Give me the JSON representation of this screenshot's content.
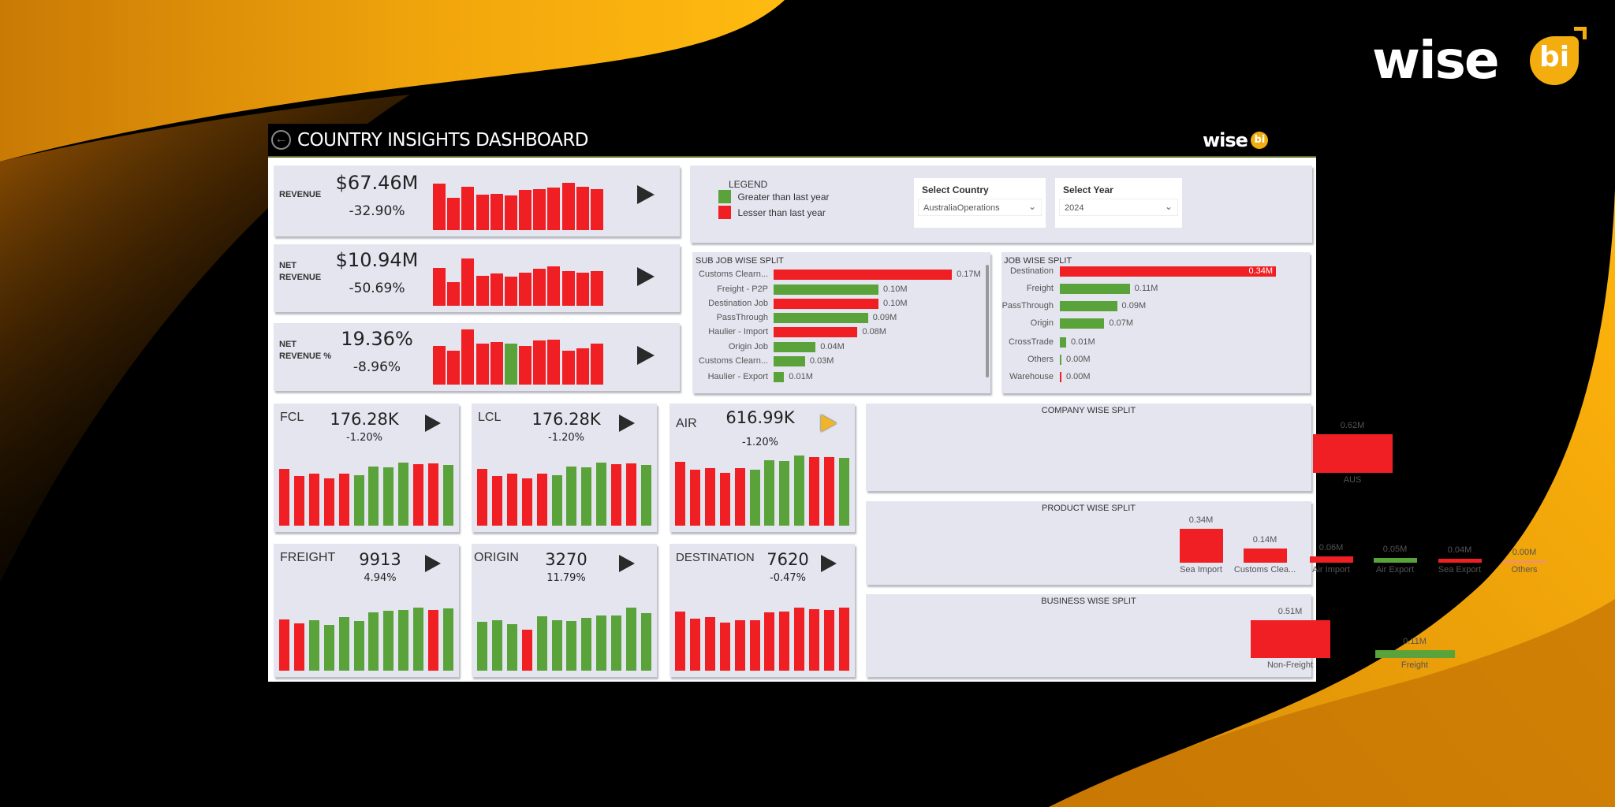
{
  "brand": {
    "logo_text": "wise",
    "logo_badge": "bi"
  },
  "header": {
    "title": "COUNTRY INSIGHTS DASHBOARD",
    "back_icon": "back-arrow-circle-icon"
  },
  "colors": {
    "up": "#5aa33a",
    "down": "#ef1f23",
    "zero_down": "#f08a8a",
    "panel": "#e4e5ef",
    "accent": "#f4ad0f",
    "highlight_arrow": "#f0b429"
  },
  "legend": {
    "title": "LEGEND",
    "items": [
      {
        "label": "Greater than last year",
        "color": "up"
      },
      {
        "label": "Lesser than last year",
        "color": "down"
      }
    ]
  },
  "filters": {
    "country": {
      "label": "Select Country",
      "value": "AustraliaOperations"
    },
    "year": {
      "label": "Select Year",
      "value": "2024"
    }
  },
  "kpis": [
    {
      "label": "REVENUE",
      "value": "$67.46M",
      "change": "-32.90%"
    },
    {
      "label": "NET\nREVENUE",
      "value": "$10.94M",
      "change": "-50.69%"
    },
    {
      "label": "NET\nREVENUE %",
      "value": "19.36%",
      "change": "-8.96%"
    }
  ],
  "tiles": [
    {
      "label": "FCL",
      "value": "176.28K",
      "change": "-1.20%"
    },
    {
      "label": "LCL",
      "value": "176.28K",
      "change": "-1.20%"
    },
    {
      "label": "AIR",
      "value": "616.99K",
      "change": "-1.20%"
    },
    {
      "label": "FREIGHT",
      "value": "9913",
      "change": "4.94%"
    },
    {
      "label": "ORIGIN",
      "value": "3270",
      "change": "11.79%"
    },
    {
      "label": "DESTINATION",
      "value": "7620",
      "change": "-0.47%"
    }
  ],
  "chart_data": [
    {
      "id": "kpi0",
      "type": "bar",
      "values": [
        177,
        123,
        164,
        133,
        136,
        132,
        151,
        156,
        162,
        179,
        164,
        155
      ],
      "colors": [
        "down",
        "down",
        "down",
        "down",
        "down",
        "down",
        "down",
        "down",
        "down",
        "down",
        "down",
        "down"
      ]
    },
    {
      "id": "kpi1",
      "type": "bar",
      "values": [
        135,
        85,
        168,
        107,
        114,
        105,
        117,
        133,
        141,
        123,
        119,
        123
      ],
      "colors": [
        "down",
        "down",
        "down",
        "down",
        "down",
        "down",
        "down",
        "down",
        "down",
        "down",
        "down",
        "down"
      ]
    },
    {
      "id": "kpi2",
      "type": "bar",
      "values": [
        144,
        127,
        207,
        153,
        161,
        153,
        146,
        165,
        168,
        127,
        135,
        153
      ],
      "colors": [
        "down",
        "down",
        "down",
        "down",
        "down",
        "up",
        "down",
        "down",
        "down",
        "down",
        "down",
        "down"
      ]
    },
    {
      "id": "tile0",
      "type": "bar",
      "values": [
        206,
        181,
        188,
        171,
        187,
        182,
        213,
        210,
        228,
        222,
        224,
        219
      ],
      "colors": [
        "down",
        "down",
        "down",
        "down",
        "down",
        "up",
        "up",
        "up",
        "up",
        "down",
        "down",
        "up"
      ]
    },
    {
      "id": "tile1",
      "type": "bar",
      "values": [
        206,
        181,
        188,
        171,
        187,
        182,
        213,
        210,
        228,
        222,
        224,
        219
      ],
      "colors": [
        "down",
        "down",
        "down",
        "down",
        "down",
        "up",
        "up",
        "up",
        "up",
        "down",
        "down",
        "up"
      ]
    },
    {
      "id": "tile2",
      "type": "bar",
      "values": [
        241,
        211,
        219,
        200,
        218,
        212,
        248,
        245,
        266,
        259,
        260,
        256
      ],
      "colors": [
        "down",
        "down",
        "down",
        "down",
        "down",
        "up",
        "up",
        "up",
        "up",
        "down",
        "down",
        "up"
      ]
    },
    {
      "id": "tile3",
      "type": "bar",
      "values": [
        206,
        190,
        202,
        183,
        213,
        199,
        233,
        240,
        244,
        252,
        242,
        248
      ],
      "colors": [
        "down",
        "down",
        "up",
        "up",
        "up",
        "up",
        "up",
        "up",
        "up",
        "up",
        "down",
        "up"
      ]
    },
    {
      "id": "tile4",
      "type": "bar",
      "values": [
        199,
        207,
        190,
        167,
        222,
        205,
        203,
        216,
        225,
        225,
        257,
        235
      ],
      "colors": [
        "up",
        "up",
        "up",
        "down",
        "up",
        "up",
        "up",
        "up",
        "up",
        "up",
        "up",
        "up"
      ]
    },
    {
      "id": "tile5",
      "type": "bar",
      "values": [
        224,
        197,
        204,
        184,
        193,
        192,
        223,
        225,
        240,
        233,
        232,
        240
      ],
      "colors": [
        "down",
        "down",
        "down",
        "down",
        "down",
        "down",
        "down",
        "down",
        "down",
        "down",
        "down",
        "down"
      ]
    },
    {
      "id": "subjob",
      "type": "bar",
      "orientation": "horizontal",
      "title": "SUB JOB WISE SPLIT",
      "categories": [
        "Customs Clearn...",
        "Freight - P2P",
        "Destination Job",
        "PassThrough",
        "Haulier - Import",
        "Origin Job",
        "Customs Clearn...",
        "Haulier - Export"
      ],
      "values": [
        0.17,
        0.1,
        0.1,
        0.09,
        0.08,
        0.04,
        0.03,
        0.01
      ],
      "labels": [
        "0.17M",
        "0.10M",
        "0.10M",
        "0.09M",
        "0.08M",
        "0.04M",
        "0.03M",
        "0.01M"
      ],
      "colors": [
        "down",
        "up",
        "down",
        "up",
        "down",
        "up",
        "up",
        "up"
      ]
    },
    {
      "id": "job",
      "type": "bar",
      "orientation": "horizontal",
      "title": "JOB WISE SPLIT",
      "categories": [
        "Destination",
        "Freight",
        "PassThrough",
        "Origin",
        "CrossTrade",
        "Others",
        "Warehouse"
      ],
      "values": [
        0.34,
        0.11,
        0.09,
        0.07,
        0.01,
        0.0,
        0.0
      ],
      "labels": [
        "0.34M",
        "0.11M",
        "0.09M",
        "0.07M",
        "0.01M",
        "0.00M",
        "0.00M"
      ],
      "colors": [
        "down",
        "up",
        "up",
        "up",
        "up",
        "up",
        "down"
      ]
    },
    {
      "id": "company",
      "type": "bar",
      "title": "COMPANY WISE SPLIT",
      "categories": [
        "AUS"
      ],
      "values": [
        0.62
      ],
      "labels": [
        "0.62M"
      ],
      "colors": [
        "down"
      ]
    },
    {
      "id": "product",
      "type": "bar",
      "title": "PRODUCT WISE SPLIT",
      "categories": [
        "Sea Import",
        "Customs Clea...",
        "Air Import",
        "Air Export",
        "Sea Export",
        "Others"
      ],
      "values": [
        0.34,
        0.14,
        0.06,
        0.05,
        0.04,
        0.0
      ],
      "labels": [
        "0.34M",
        "0.14M",
        "0.06M",
        "0.05M",
        "0.04M",
        "0.00M"
      ],
      "colors": [
        "down",
        "down",
        "down",
        "up",
        "down",
        "zero_down"
      ]
    },
    {
      "id": "business",
      "type": "bar",
      "title": "BUSINESS WISE SPLIT",
      "categories": [
        "Non-Freight",
        "Freight"
      ],
      "values": [
        0.51,
        0.11
      ],
      "labels": [
        "0.51M",
        "0.11M"
      ],
      "colors": [
        "down",
        "up"
      ]
    }
  ]
}
